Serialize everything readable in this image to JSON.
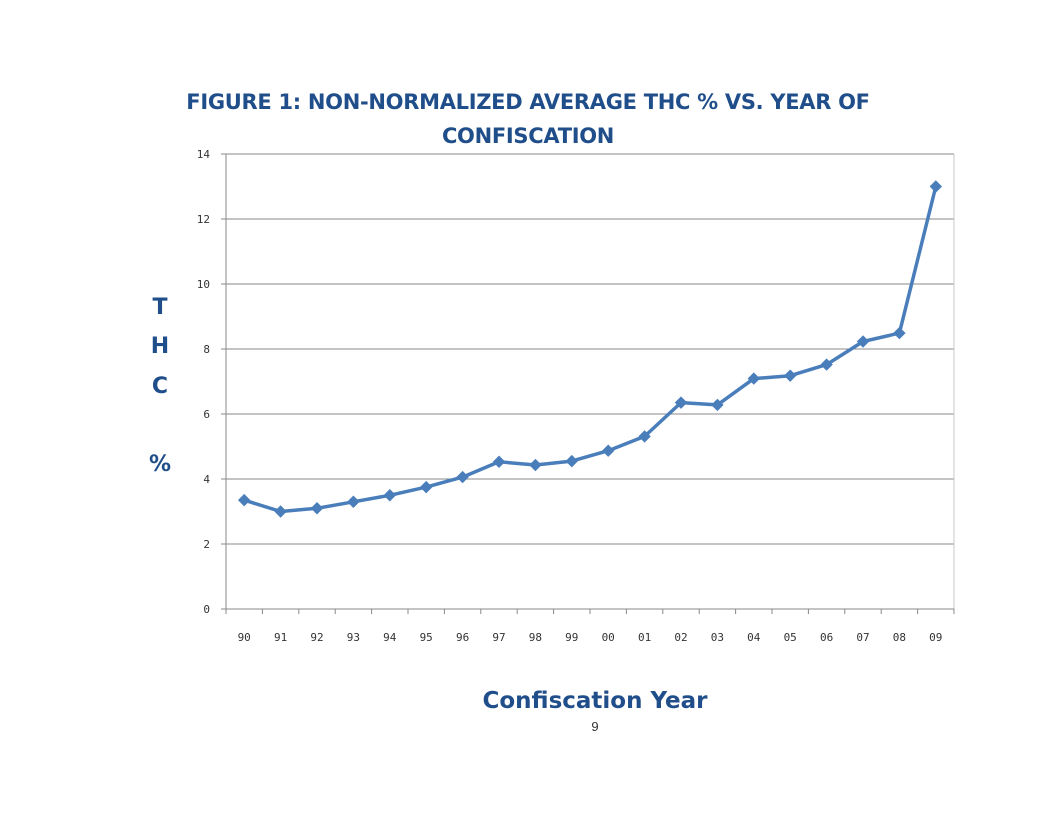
{
  "page": {
    "page_number": "9"
  },
  "chart_data": {
    "type": "line",
    "title_lines": [
      "FIGURE 1: NON-NORMALIZED AVERAGE THC % VS. YEAR OF",
      "CONFISCATION"
    ],
    "ylabel_chars": [
      "T",
      "H",
      "C",
      "%"
    ],
    "xlabel": "Confiscation Year",
    "categories": [
      "90",
      "91",
      "92",
      "93",
      "94",
      "95",
      "96",
      "97",
      "98",
      "99",
      "00",
      "01",
      "02",
      "03",
      "04",
      "05",
      "06",
      "07",
      "08",
      "09"
    ],
    "values": [
      3.35,
      3.0,
      3.1,
      3.3,
      3.5,
      3.75,
      4.06,
      4.53,
      4.43,
      4.55,
      4.87,
      5.31,
      6.35,
      6.28,
      7.09,
      7.18,
      7.52,
      8.23,
      8.49,
      13.0
    ],
    "yticks": [
      "0",
      "2",
      "4",
      "6",
      "8",
      "10",
      "12",
      "14"
    ],
    "ylim": [
      0,
      14
    ],
    "grid": true,
    "legend": "none",
    "line_color": "#4a7ebb"
  }
}
